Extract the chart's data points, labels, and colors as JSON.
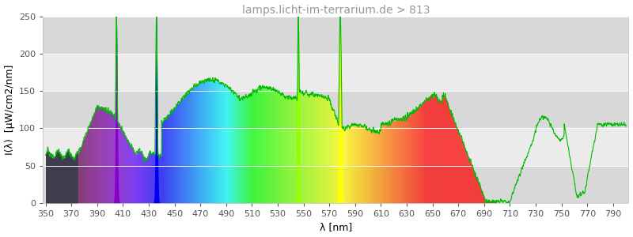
{
  "title": "lamps.licht-im-terrarium.de > 813",
  "xlabel": "λ [nm]",
  "ylabel": "I(λ)  [μW/cm2/nm]",
  "xlim": [
    348,
    802
  ],
  "ylim": [
    0,
    250
  ],
  "yticks": [
    0,
    50,
    100,
    150,
    200,
    250
  ],
  "xticks": [
    350,
    370,
    390,
    410,
    430,
    450,
    470,
    490,
    510,
    530,
    550,
    570,
    590,
    610,
    630,
    650,
    670,
    690,
    710,
    730,
    750,
    770,
    790
  ],
  "bg_color": "#ffffff",
  "plot_bg_light": "#ebebeb",
  "plot_bg_dark": "#d8d8d8",
  "grid_color": "#ffffff",
  "title_color": "#999999",
  "line_color": "#00bb00",
  "title_fontsize": 10,
  "axis_label_fontsize": 9,
  "tick_fontsize": 8,
  "uv_color": "#555566",
  "spike_405_color": "#8800cc",
  "spike_436_color": "#0000ee",
  "spike_546_color": "#99ff00",
  "spike_578_color": "#ffff00"
}
